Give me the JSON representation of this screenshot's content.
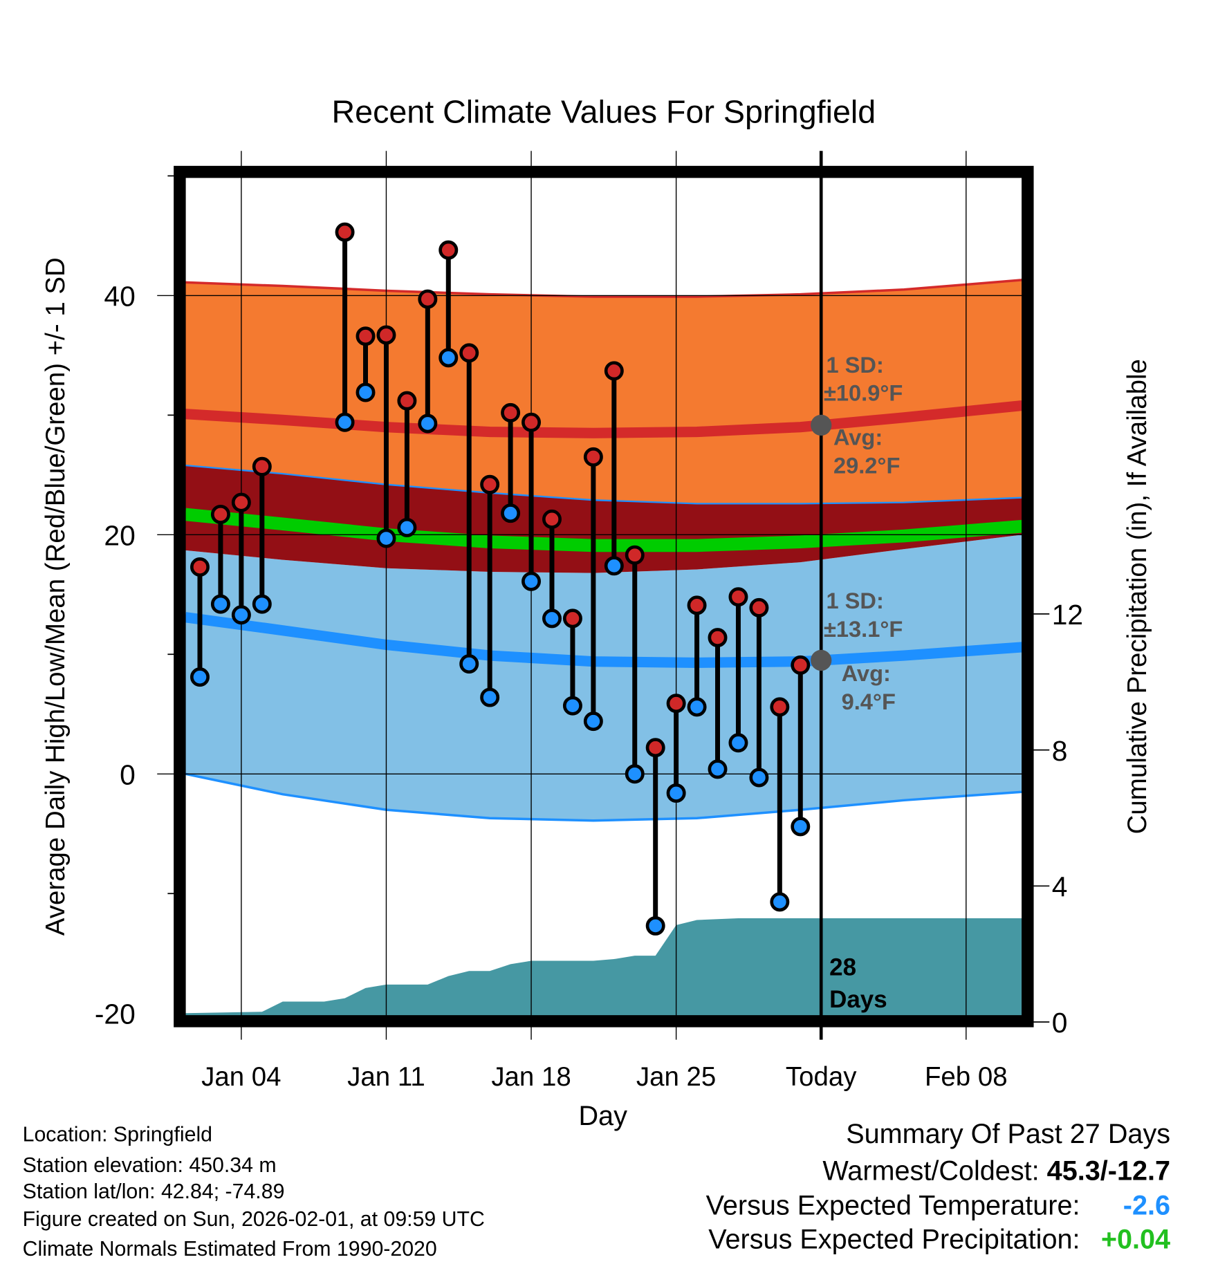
{
  "chart_data": {
    "type": "line",
    "title": "Recent Climate Values For Springfield",
    "xlabel": "Day",
    "ylabel": "Average Daily High/Low/Mean (Red/Blue/Green) +/- 1 SD",
    "ylabel_right": "Cumulative Precipitation (in), If Available",
    "xlim": [
      1.3,
      41.7
    ],
    "ylim": [
      -20,
      50
    ],
    "ylim_right": [
      0.26,
      24.9
    ],
    "grid": true,
    "x_ticks": [
      {
        "day": 4,
        "label": "Jan 04"
      },
      {
        "day": 11,
        "label": "Jan 11"
      },
      {
        "day": 18,
        "label": "Jan 18"
      },
      {
        "day": 25,
        "label": "Jan 25"
      },
      {
        "day": 32,
        "label": "Today"
      },
      {
        "day": 39,
        "label": "Feb 08"
      }
    ],
    "y_ticks": [
      {
        "value": 40,
        "label": "40"
      },
      {
        "value": 20,
        "label": "20"
      },
      {
        "value": 0,
        "label": "0"
      },
      {
        "value": -20,
        "label": "-20"
      }
    ],
    "y_minor_ticks": [
      50,
      30,
      10,
      -10
    ],
    "y_right_ticks": [
      {
        "value": 12,
        "label": "12"
      },
      {
        "value": 8,
        "label": "8"
      },
      {
        "value": 4,
        "label": "4"
      },
      {
        "value": 0,
        "label": "0"
      }
    ],
    "normals": {
      "days": [
        1.3,
        6,
        11,
        16,
        21,
        26,
        31,
        36,
        41.7
      ],
      "high_plus_sd": [
        41.1,
        40.8,
        40.4,
        40.1,
        39.9,
        39.9,
        40.1,
        40.5,
        41.3
      ],
      "high_avg": [
        30.1,
        29.6,
        29.0,
        28.6,
        28.5,
        28.6,
        29.0,
        29.8,
        30.8
      ],
      "high_minus_sd": [
        25.8,
        25.1,
        24.2,
        23.5,
        22.9,
        22.6,
        22.6,
        22.7,
        23.1
      ],
      "mean": [
        21.7,
        20.9,
        20.0,
        19.4,
        19.1,
        19.1,
        19.4,
        19.9,
        20.7
      ],
      "low_plus_sd": [
        18.7,
        17.9,
        17.2,
        16.9,
        16.8,
        17.1,
        17.7,
        18.8,
        20.0
      ],
      "low_avg": [
        13.1,
        12.0,
        10.8,
        9.9,
        9.4,
        9.3,
        9.4,
        9.9,
        10.6
      ],
      "low_minus_sd": [
        0,
        -1.7,
        -3.0,
        -3.7,
        -3.9,
        -3.7,
        -3.0,
        -2.2,
        -1.5
      ]
    },
    "daily": [
      {
        "day": 2,
        "high": 17.3,
        "low": 8.1
      },
      {
        "day": 3,
        "high": 21.7,
        "low": 14.2
      },
      {
        "day": 4,
        "high": 22.7,
        "low": 13.3
      },
      {
        "day": 5,
        "high": 25.7,
        "low": 14.2
      },
      {
        "day": 9,
        "high": 45.3,
        "low": 29.4
      },
      {
        "day": 10,
        "high": 36.6,
        "low": 31.9
      },
      {
        "day": 11,
        "high": 36.7,
        "low": 19.7
      },
      {
        "day": 12,
        "high": 31.2,
        "low": 20.6
      },
      {
        "day": 13,
        "high": 39.7,
        "low": 29.3
      },
      {
        "day": 14,
        "high": 43.8,
        "low": 34.8
      },
      {
        "day": 15,
        "high": 35.2,
        "low": 9.2
      },
      {
        "day": 16,
        "high": 24.2,
        "low": 6.4
      },
      {
        "day": 17,
        "high": 30.2,
        "low": 21.8
      },
      {
        "day": 18,
        "high": 29.4,
        "low": 16.1
      },
      {
        "day": 19,
        "high": 21.3,
        "low": 13.0
      },
      {
        "day": 20,
        "high": 13.0,
        "low": 5.7
      },
      {
        "day": 21,
        "high": 26.5,
        "low": 4.4
      },
      {
        "day": 22,
        "high": 33.7,
        "low": 17.4
      },
      {
        "day": 23,
        "high": 18.3,
        "low": 0.0
      },
      {
        "day": 24,
        "high": 2.2,
        "low": -12.7
      },
      {
        "day": 25,
        "high": 5.9,
        "low": -1.6
      },
      {
        "day": 26,
        "high": 14.1,
        "low": 5.6
      },
      {
        "day": 27,
        "high": 11.4,
        "low": 0.4
      },
      {
        "day": 28,
        "high": 14.8,
        "low": 2.6
      },
      {
        "day": 29,
        "high": 13.9,
        "low": -0.3
      },
      {
        "day": 30,
        "high": 5.6,
        "low": -10.7
      },
      {
        "day": 31,
        "high": 9.1,
        "low": -4.4
      }
    ],
    "precip_cumulative": {
      "days": [
        1.3,
        5,
        6,
        8,
        9,
        10,
        11,
        13,
        14,
        15,
        16,
        17,
        18,
        21,
        22,
        23,
        24,
        25,
        26,
        28,
        41.7
      ],
      "values": [
        0.26,
        0.3,
        0.6,
        0.6,
        0.7,
        1.0,
        1.1,
        1.1,
        1.35,
        1.5,
        1.5,
        1.7,
        1.8,
        1.8,
        1.85,
        1.95,
        1.95,
        2.85,
        3.0,
        3.05,
        3.05
      ]
    },
    "today_day": 32,
    "annotations": {
      "high_sd": "1 SD:",
      "high_sd_value": "±10.9°F",
      "high_avg": "Avg:",
      "high_avg_value": "29.2°F",
      "low_sd": "1 SD:",
      "low_sd_value": "±13.1°F",
      "low_avg": "Avg:",
      "low_avg_value": "9.4°F",
      "days_count": "28",
      "days_word": "Days"
    },
    "colors": {
      "high_band": "#f47a30",
      "overlap": "#930f15",
      "low_band": "#82c0e6",
      "high_line": "#d42a2a",
      "low_line": "#1e90ff",
      "mean_line": "#00cc00",
      "precip": "#4698a3"
    }
  },
  "footer": {
    "location": "Location: Springfield",
    "elevation": "Station elevation: 450.34 m",
    "latlon": "Station lat/lon: 42.84; -74.89",
    "created": "Figure created on Sun, 2026-02-01, at 09:59 UTC",
    "normals": "Climate Normals Estimated From 1990-2020"
  },
  "summary": {
    "title": "Summary Of Past 27 Days",
    "warmest_label": "Warmest/Coldest: ",
    "warmest_value": "45.3/-12.7",
    "temp_label": "Versus Expected Temperature:",
    "temp_value": "-2.6",
    "temp_color": "#1e90ff",
    "precip_label": "Versus Expected Precipitation:",
    "precip_value": "+0.04",
    "precip_color": "#22c020"
  }
}
